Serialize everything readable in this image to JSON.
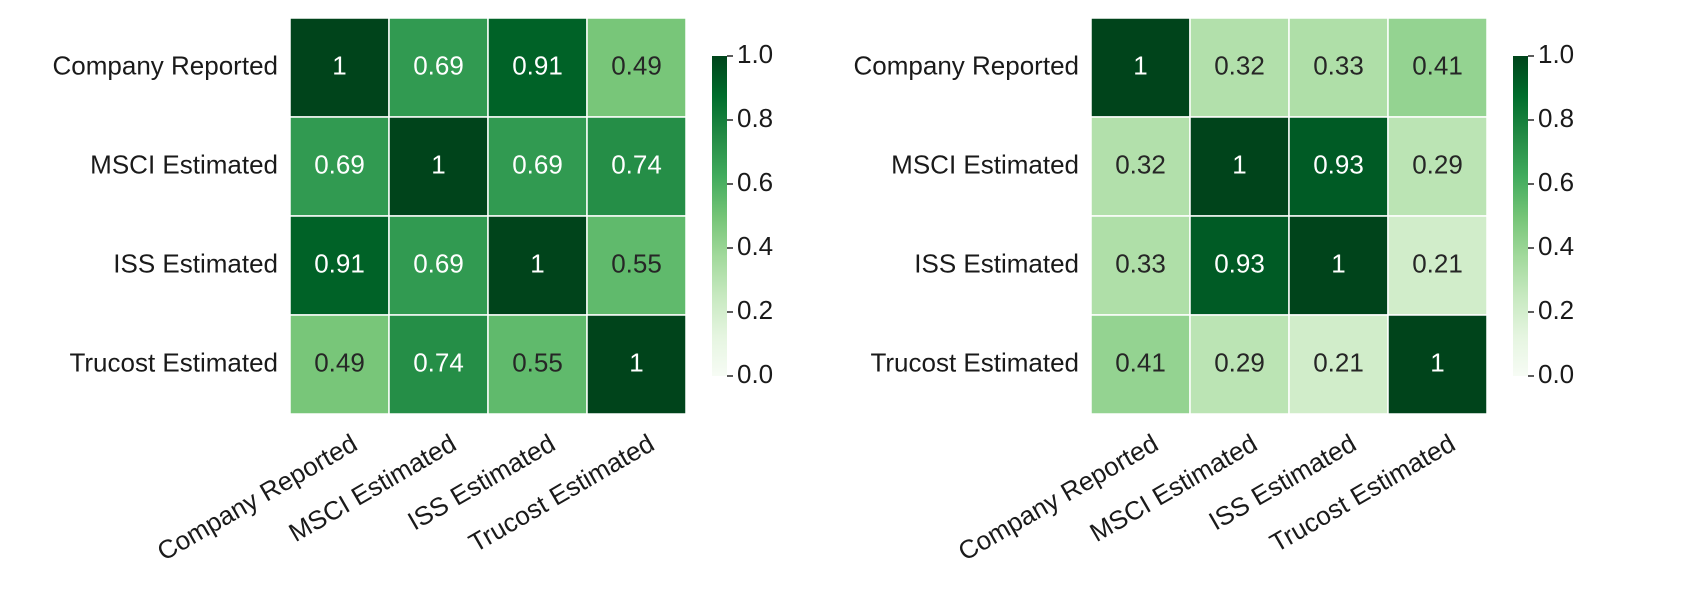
{
  "chart_data": [
    {
      "type": "heatmap",
      "categories": [
        "Company Reported",
        "MSCI Estimated",
        "ISS Estimated",
        "Trucost Estimated"
      ],
      "values": [
        [
          1,
          0.69,
          0.91,
          0.49
        ],
        [
          0.69,
          1,
          0.69,
          0.74
        ],
        [
          0.91,
          0.69,
          1,
          0.55
        ],
        [
          0.49,
          0.74,
          0.55,
          1
        ]
      ],
      "clim": [
        0,
        1
      ],
      "cticks": [
        {
          "value": 0,
          "label": "0.0"
        },
        0.2,
        0.4,
        0.6,
        0.8,
        {
          "value": 1,
          "label": "1.0"
        }
      ],
      "colors": [
        "#f7fcf5",
        "#e5f5e0",
        "#c7e9c0",
        "#a1d99b",
        "#74c476",
        "#41ab5d",
        "#238b45",
        "#006d2c",
        "#00441b"
      ]
    },
    {
      "type": "heatmap",
      "categories": [
        "Company Reported",
        "MSCI Estimated",
        "ISS Estimated",
        "Trucost Estimated"
      ],
      "values": [
        [
          1,
          0.32,
          0.33,
          0.41
        ],
        [
          0.32,
          1,
          0.93,
          0.29
        ],
        [
          0.33,
          0.93,
          1,
          0.21
        ],
        [
          0.41,
          0.29,
          0.21,
          1
        ]
      ],
      "clim": [
        0,
        1
      ],
      "cticks": [
        {
          "value": 0,
          "label": "0.0"
        },
        0.2,
        0.4,
        0.6,
        0.8,
        {
          "value": 1,
          "label": "1.0"
        }
      ],
      "colors": [
        "#f7fcf5",
        "#e5f5e0",
        "#c7e9c0",
        "#a1d99b",
        "#74c476",
        "#41ab5d",
        "#238b45",
        "#006d2c",
        "#00441b"
      ]
    }
  ]
}
